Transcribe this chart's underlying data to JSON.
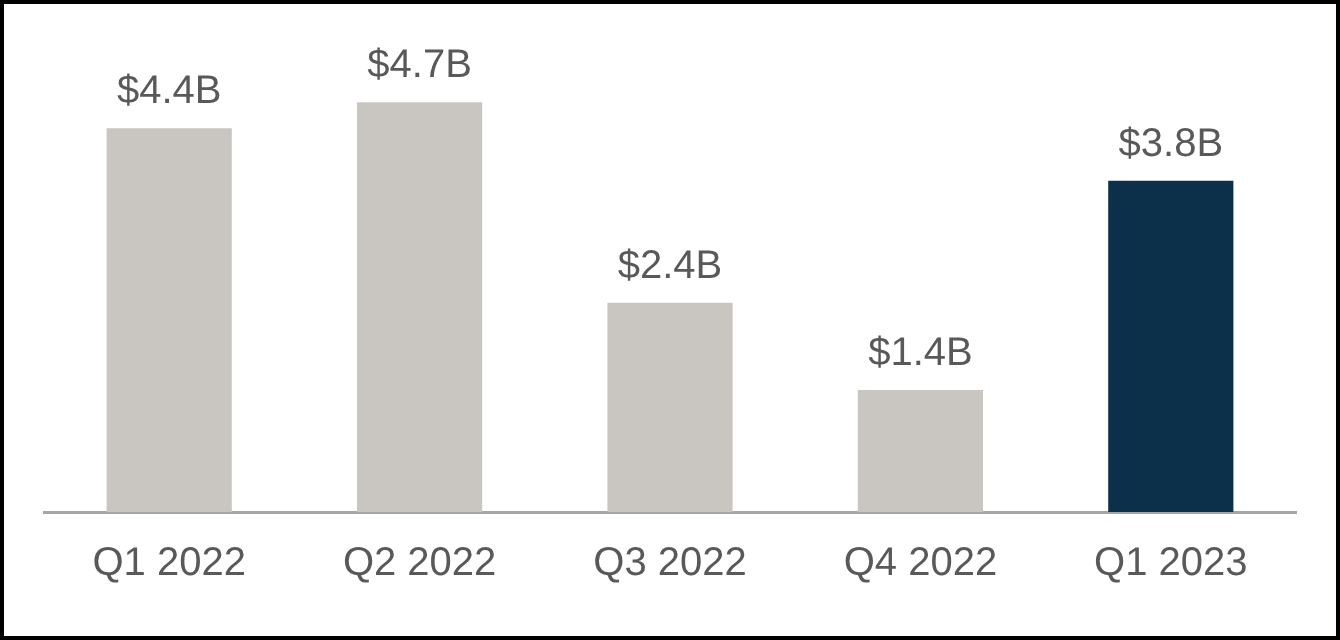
{
  "chart_data": {
    "type": "bar",
    "categories": [
      "Q1 2022",
      "Q2 2022",
      "Q3 2022",
      "Q4 2022",
      "Q1 2023"
    ],
    "values": [
      4.4,
      4.7,
      2.4,
      1.4,
      3.8
    ],
    "colors": [
      "#c9c6c2",
      "#c9c6c2",
      "#c9c6c2",
      "#c9c6c2",
      "#0c3049"
    ],
    "value_labels": [
      "$4.4B",
      "$4.7B",
      "$2.4B",
      "$1.4B",
      "$3.8B"
    ],
    "grid": false,
    "legend": false
  }
}
